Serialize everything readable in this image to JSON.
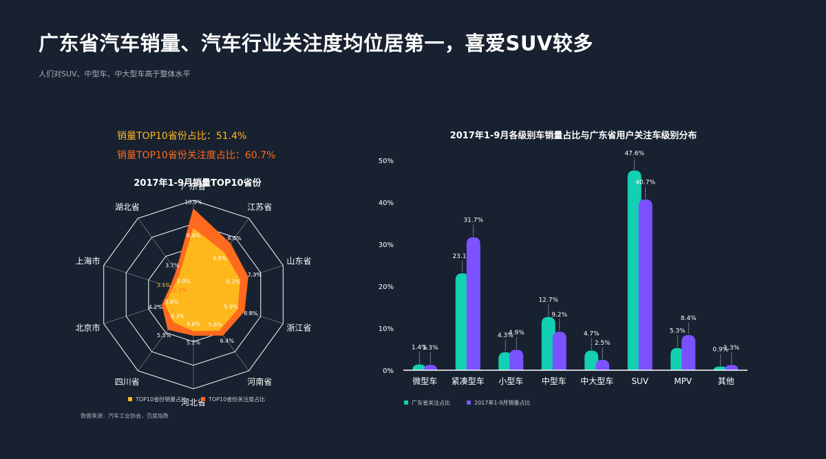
{
  "header": {
    "title": "广东省汽车销量、汽车行业关注度均位居第一，喜爱SUV较多",
    "subtitle": "人们对SUV、中型车、中大型车高于整体水平"
  },
  "stats": {
    "sales_share": "销量TOP10省份占比：51.4%",
    "attention_share": "销量TOP10省份关注度占比：60.7%"
  },
  "source": "数据来源：汽车工业协会，百度指数",
  "colors": {
    "background": "#182130",
    "sales": "#ffb81c",
    "attention": "#ff6a1f",
    "guangdong_attention": "#13d0b3",
    "national_sales": "#7b52ff"
  },
  "chart_data": [
    {
      "type": "radar",
      "title": "2017年1-9月销量TOP10省份",
      "categories": [
        "广东省",
        "江苏省",
        "山东省",
        "浙江省",
        "河南省",
        "河北省",
        "四川省",
        "北京市",
        "上海市",
        "湖北省"
      ],
      "series": [
        {
          "name": "TOP10省份销量占比",
          "values": [
            8.4,
            6.6,
            6.2,
            5.9,
            5.6,
            4.6,
            4.3,
            3.8,
            2.7,
            3.0
          ],
          "labels": [
            "8.4%",
            "6.6%",
            "6.2%",
            "5.9%",
            "5.6%",
            "4.6%",
            "4.3%",
            "3.8%",
            "2.7%",
            "3.0%"
          ]
        },
        {
          "name": "TOP10省份关注度占比",
          "values": [
            10.9,
            8.0,
            7.3,
            6.8,
            6.4,
            5.2,
            5.5,
            4.2,
            3.1,
            3.7
          ],
          "labels": [
            "10.9%",
            "8.0%",
            "7.3%",
            "6.8%",
            "6.4%",
            "5.2%",
            "5.5%",
            "4.2%",
            "3.1%",
            "3.7%"
          ]
        }
      ],
      "rmax": 12,
      "rings": 4,
      "legend": "bottom"
    },
    {
      "type": "bar",
      "title": "2017年1-9月各级别车销量占比与广东省用户关注车级别分布",
      "categories": [
        "微型车",
        "紧凑型车",
        "小型车",
        "中型车",
        "中大型车",
        "SUV",
        "MPV",
        "其他"
      ],
      "series": [
        {
          "name": "广东省关注占比",
          "values": [
            1.4,
            23.1,
            4.3,
            12.7,
            4.7,
            47.6,
            5.3,
            0.9
          ],
          "labels": [
            "1.4%",
            "23.1%",
            "4.3%",
            "12.7%",
            "4.7%",
            "47.6%",
            "5.3%",
            "0.9%"
          ]
        },
        {
          "name": "2017年1-9月销量占比",
          "values": [
            1.3,
            31.7,
            4.9,
            9.2,
            2.5,
            40.7,
            8.4,
            1.3
          ],
          "labels": [
            "1.3%",
            "31.7%",
            "4.9%",
            "9.2%",
            "2.5%",
            "40.7%",
            "8.4%",
            "1.3%"
          ]
        }
      ],
      "yticks": [
        "0%",
        "10%",
        "20%",
        "30%",
        "40%",
        "50%"
      ],
      "ylim": [
        0,
        50
      ],
      "legend": "bottom-left"
    }
  ]
}
